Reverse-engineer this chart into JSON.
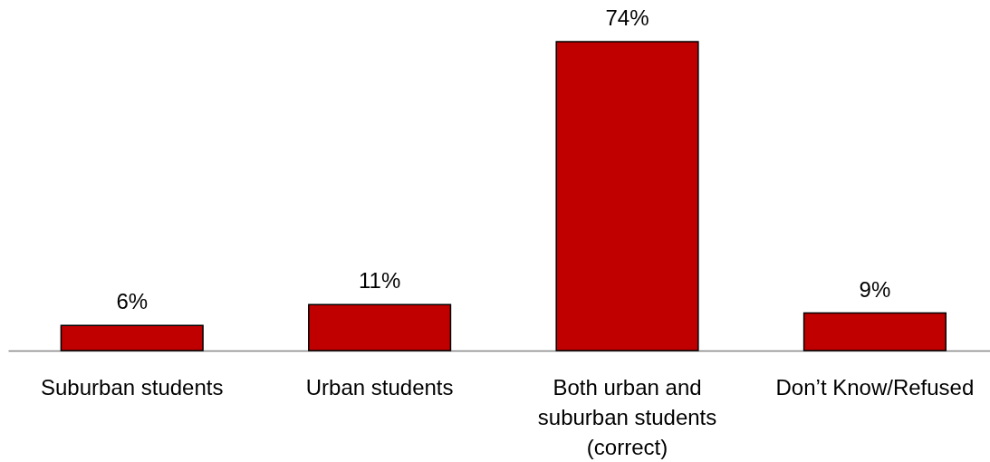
{
  "chart_data": {
    "type": "bar",
    "categories": [
      "Suburban students",
      "Urban students",
      "Both urban and suburban students (correct)",
      "Don’t Know/Refused"
    ],
    "values": [
      6,
      11,
      74,
      9
    ],
    "value_labels": [
      "6%",
      "11%",
      "74%",
      "9%"
    ],
    "color": "#c00000"
  }
}
